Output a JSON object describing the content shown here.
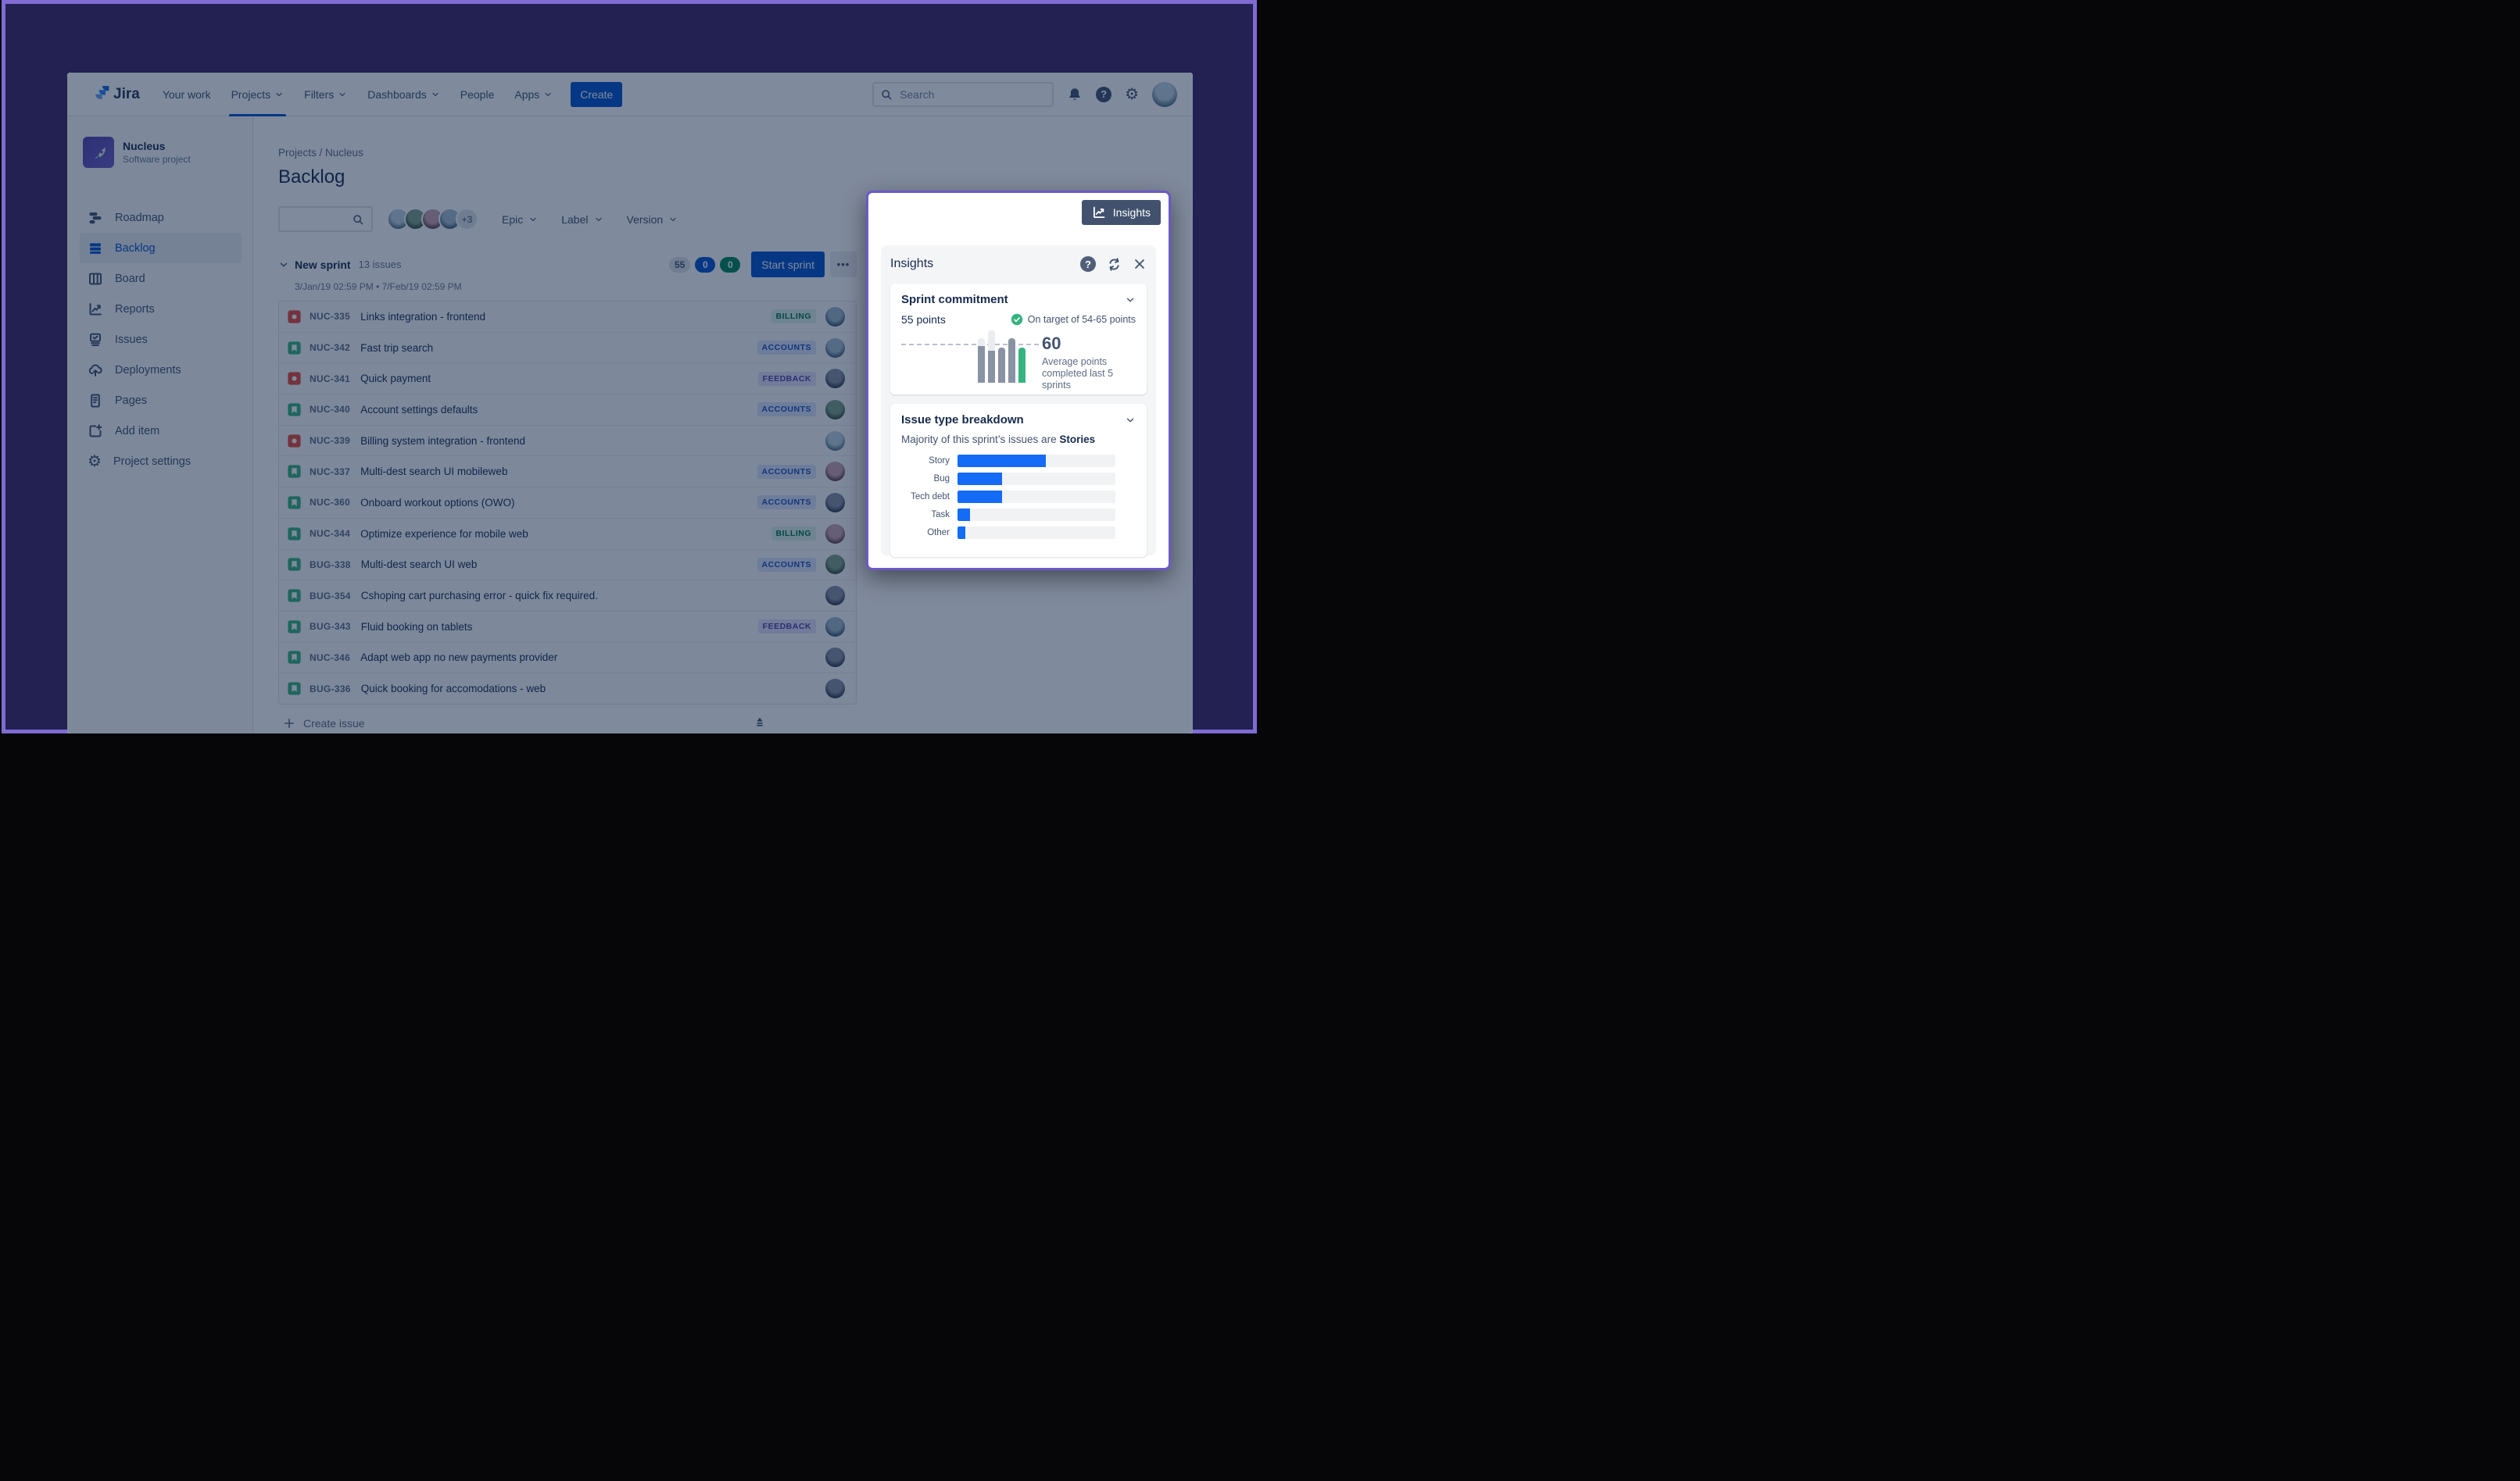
{
  "colors": {
    "accent_blue": "#0052CC",
    "breakdown_bar_blue": "#146BF6",
    "breakdown_track": "#F1F2F4",
    "success_green": "#36B37E",
    "backdrop_navy": "#232052",
    "frame_purple": "#7E6BD3",
    "spotlight_border_purple": "#6C59C8",
    "insights_button_bg": "#42526E"
  },
  "topnav": {
    "logo": "Jira",
    "items": [
      {
        "label": "Your work",
        "chevron": false,
        "active": false
      },
      {
        "label": "Projects",
        "chevron": true,
        "active": true
      },
      {
        "label": "Filters",
        "chevron": true,
        "active": false
      },
      {
        "label": "Dashboards",
        "chevron": true,
        "active": false
      },
      {
        "label": "People",
        "chevron": false,
        "active": false
      },
      {
        "label": "Apps",
        "chevron": true,
        "active": false
      }
    ],
    "create_label": "Create",
    "search_placeholder": "Search",
    "right_icons": [
      "bell-icon",
      "help-icon",
      "gear-icon",
      "user-avatar"
    ]
  },
  "sidebar": {
    "project_name": "Nucleus",
    "project_type": "Software project",
    "project_icon": "rocket-icon",
    "items": [
      {
        "label": "Roadmap",
        "icon": "roadmap-icon",
        "active": false
      },
      {
        "label": "Backlog",
        "icon": "backlog-icon",
        "active": true
      },
      {
        "label": "Board",
        "icon": "board-icon",
        "active": false
      },
      {
        "label": "Reports",
        "icon": "reports-icon",
        "active": false
      },
      {
        "label": "Issues",
        "icon": "issues-icon",
        "active": false
      },
      {
        "label": "Deployments",
        "icon": "deployments-icon",
        "active": false
      },
      {
        "label": "Pages",
        "icon": "pages-icon",
        "active": false
      },
      {
        "label": "Add item",
        "icon": "add-item-icon",
        "active": false
      },
      {
        "label": "Project settings",
        "icon": "settings-icon",
        "active": false
      }
    ]
  },
  "main": {
    "breadcrumb": [
      "Projects",
      "Nucleus"
    ],
    "page_title": "Backlog",
    "filter": {
      "avatar_count": 4,
      "avatar_overflow": "+3",
      "dropdowns": [
        "Epic",
        "Label",
        "Version"
      ]
    },
    "sprint": {
      "name": "New sprint",
      "issue_count": "13 issues",
      "date_range": "3/Jan/19 02:59 PM • 7/Feb/19 02:59 PM",
      "badges": [
        {
          "value": "55",
          "style": "gray"
        },
        {
          "value": "0",
          "style": "blue"
        },
        {
          "value": "0",
          "style": "green"
        }
      ],
      "start_button": "Start sprint"
    },
    "issues": [
      {
        "key": "NUC-335",
        "type": "bug",
        "summary": "Links integration - frontend",
        "label": "BILLING",
        "label_style": "green",
        "avatar": 0
      },
      {
        "key": "NUC-342",
        "type": "story",
        "summary": "Fast trip search",
        "label": "ACCOUNTS",
        "label_style": "blue",
        "avatar": 3
      },
      {
        "key": "NUC-341",
        "type": "bug",
        "summary": "Quick payment",
        "label": "FEEDBACK",
        "label_style": "purple",
        "avatar": 2
      },
      {
        "key": "NUC-340",
        "type": "story",
        "summary": "Account settings defaults",
        "label": "ACCOUNTS",
        "label_style": "blue",
        "avatar": 1
      },
      {
        "key": "NUC-339",
        "type": "bug",
        "summary": "Billing system integration - frontend",
        "label": "",
        "label_style": "",
        "avatar": 4
      },
      {
        "key": "NUC-337",
        "type": "story",
        "summary": "Multi-dest search UI mobileweb",
        "label": "ACCOUNTS",
        "label_style": "blue",
        "avatar": 5
      },
      {
        "key": "NUC-360",
        "type": "story",
        "summary": "Onboard workout options (OWO)",
        "label": "ACCOUNTS",
        "label_style": "blue",
        "avatar": 2
      },
      {
        "key": "NUC-344",
        "type": "story",
        "summary": "Optimize experience for mobile web",
        "label": "BILLING",
        "label_style": "green",
        "avatar": 5
      },
      {
        "key": "BUG-338",
        "type": "story",
        "summary": "Multi-dest search UI web",
        "label": "ACCOUNTS",
        "label_style": "blue",
        "avatar": 1
      },
      {
        "key": "BUG-354",
        "type": "story",
        "summary": "Cshoping cart purchasing error - quick fix required.",
        "label": "",
        "label_style": "",
        "avatar": 2
      },
      {
        "key": "BUG-343",
        "type": "story",
        "summary": "Fluid booking on tablets",
        "label": "FEEDBACK",
        "label_style": "purple",
        "avatar": 0
      },
      {
        "key": "NUC-346",
        "type": "story",
        "summary": "Adapt web app no new payments provider",
        "label": "",
        "label_style": "",
        "avatar": 2
      },
      {
        "key": "BUG-336",
        "type": "story",
        "summary": "Quick booking for accomodations - web",
        "label": "",
        "label_style": "",
        "avatar": 2
      }
    ],
    "create_issue_label": "Create issue"
  },
  "insights": {
    "toggle_button": "Insights",
    "panel_title": "Insights",
    "panel_icons": [
      "help-icon",
      "refresh-icon",
      "close-icon"
    ],
    "sprint_commitment": {
      "title": "Sprint commitment",
      "points": "55 points",
      "status_text": "On target of 54-65 points",
      "average_value": "60",
      "average_caption": "Average points completed last 5 sprints",
      "chart_data": {
        "type": "bar",
        "description": "Points per sprint for the last 5 sprints; solid segment = completed, light top segment = committed but not completed; dashed line = 5-sprint average of 60 points; last bar (green) is most recent sprint.",
        "units": "percent of chart max height",
        "bars": [
          {
            "total": 85,
            "solid": 70,
            "color": "gray"
          },
          {
            "total": 100,
            "solid": 61,
            "color": "gray"
          },
          {
            "total": 67,
            "solid": 67,
            "color": "gray"
          },
          {
            "total": 85,
            "solid": 85,
            "color": "gray"
          },
          {
            "total": 67,
            "solid": 67,
            "color": "green"
          }
        ],
        "average_line": 71,
        "average_points": 60
      }
    },
    "issue_type_breakdown": {
      "title": "Issue type breakdown",
      "subtitle_prefix": "Majority of this sprint’s issues are ",
      "subtitle_emphasis": "Stories",
      "chart_data": {
        "type": "bar",
        "orientation": "horizontal",
        "categories": [
          "Story",
          "Bug",
          "Tech debt",
          "Task",
          "Other"
        ],
        "values_pct": [
          56,
          28,
          28,
          8,
          5
        ],
        "xlim": [
          0,
          100
        ],
        "fill_color": "#146BF6",
        "track_color": "#F1F2F4",
        "grid": false,
        "legend": false
      }
    }
  },
  "avatars": {
    "palette": [
      [
        "#9FB6C8",
        "#37536B"
      ],
      [
        "#7FA089",
        "#2F4B3A"
      ],
      [
        "#8B8FA3",
        "#2F3447"
      ],
      [
        "#A8BFD0",
        "#3E5C74"
      ],
      [
        "#BFD3E0",
        "#4C6B80"
      ],
      [
        "#C9A3B0",
        "#5C3A4A"
      ]
    ],
    "filter_avatars": [
      4,
      1,
      5,
      3
    ],
    "nav_avatar": 4
  }
}
